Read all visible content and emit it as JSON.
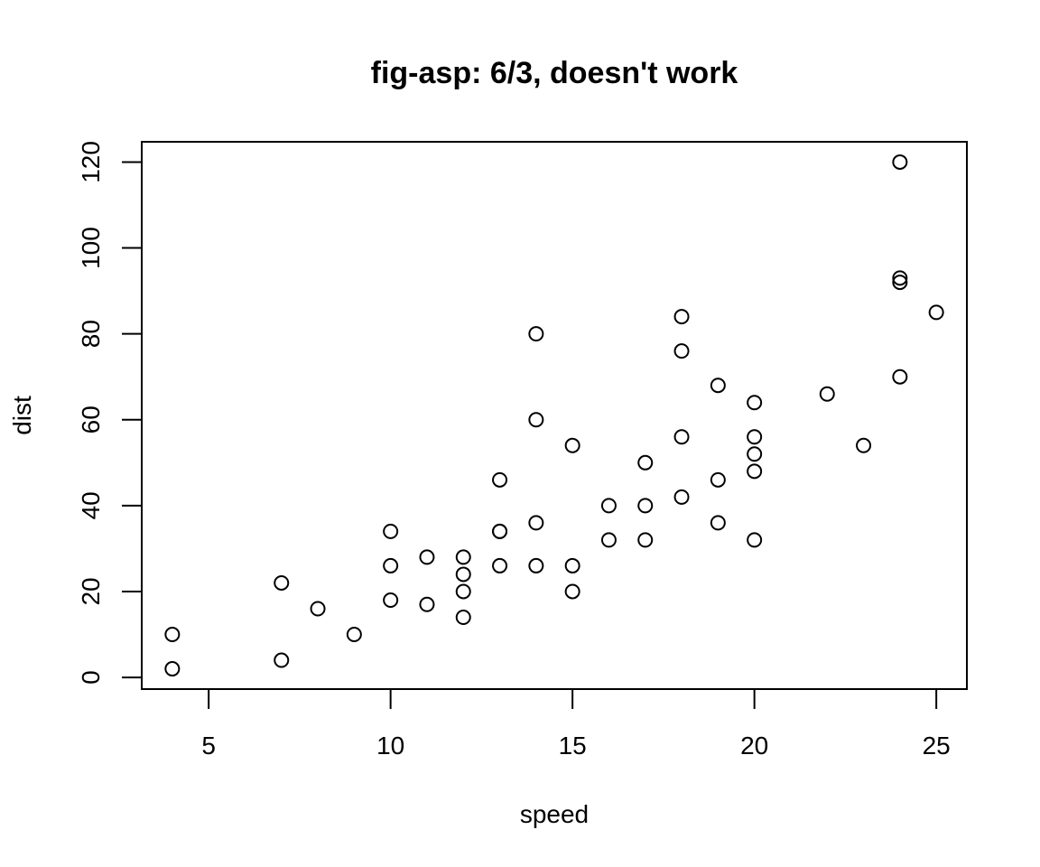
{
  "chart_data": {
    "type": "scatter",
    "title": "fig-asp: 6/3, doesn't work",
    "xlabel": "speed",
    "ylabel": "dist",
    "xlim": [
      3.16,
      25.84
    ],
    "ylim": [
      -2.72,
      124.72
    ],
    "xticks": [
      5,
      10,
      15,
      20,
      25
    ],
    "yticks": [
      0,
      20,
      40,
      60,
      80,
      100,
      120
    ],
    "grid": false,
    "legend": "none",
    "marker": "open-circle",
    "x": [
      4,
      4,
      7,
      7,
      8,
      9,
      10,
      10,
      10,
      11,
      11,
      12,
      12,
      12,
      12,
      13,
      13,
      13,
      13,
      14,
      14,
      14,
      14,
      15,
      15,
      15,
      16,
      16,
      17,
      17,
      17,
      18,
      18,
      18,
      18,
      19,
      19,
      19,
      20,
      20,
      20,
      20,
      20,
      22,
      23,
      24,
      24,
      24,
      24,
      25
    ],
    "y": [
      2,
      10,
      4,
      22,
      16,
      10,
      18,
      26,
      34,
      17,
      28,
      14,
      20,
      24,
      28,
      26,
      34,
      34,
      46,
      26,
      36,
      60,
      80,
      20,
      26,
      54,
      32,
      40,
      32,
      40,
      50,
      42,
      56,
      76,
      84,
      36,
      46,
      68,
      32,
      48,
      52,
      56,
      64,
      66,
      54,
      70,
      92,
      93,
      120,
      85
    ]
  }
}
